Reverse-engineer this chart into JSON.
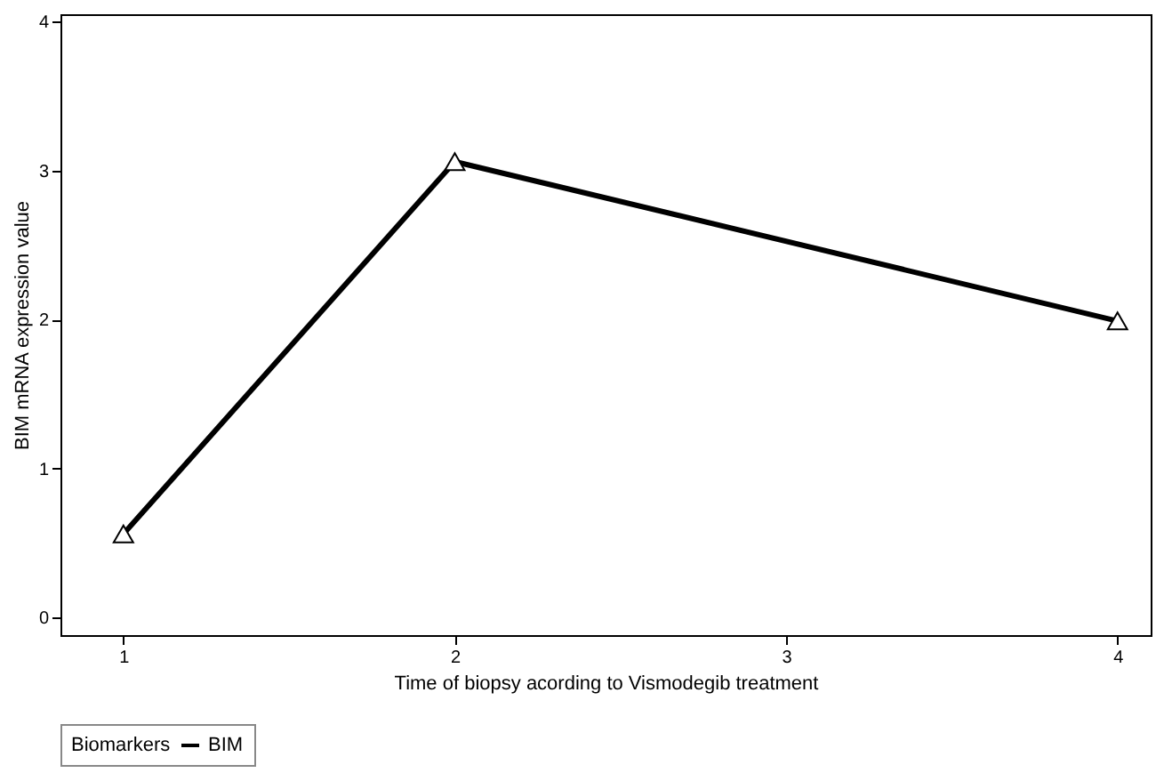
{
  "chart_data": {
    "type": "line",
    "xlabel": "Time of biopsy acording to Vismodegib treatment",
    "ylabel": "BIM mRNA expression value",
    "legend_title": "Biomarkers",
    "x": [
      1,
      2,
      4
    ],
    "series": [
      {
        "name": "BIM",
        "color": "#000000",
        "values": [
          0.56,
          3.06,
          1.99
        ]
      }
    ],
    "xlim": [
      0.81,
      4.1
    ],
    "xticks": [
      1,
      2,
      3,
      4
    ],
    "ylim": [
      -0.12,
      4.05
    ],
    "yticks": [
      0,
      1,
      2,
      3,
      4
    ],
    "marker": "triangle",
    "line_style": "solid",
    "grid": false,
    "legend": "bottom"
  }
}
